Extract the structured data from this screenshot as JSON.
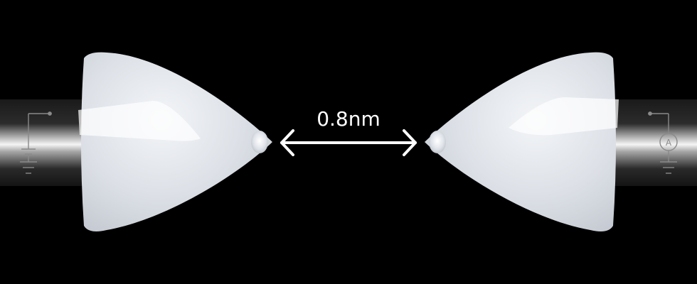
{
  "diagram": {
    "gap_label": "0.8nm",
    "colors": {
      "background": "#000000",
      "electrode": "#e8ebf0",
      "lead": "#cfcfcf",
      "circuit_line": "#8a8a8a",
      "arrow": "#ffffff",
      "label": "#ffffff"
    },
    "icons": {
      "left_lead_symbol": "battery-icon",
      "right_lead_symbol": "ammeter-icon",
      "ammeter_letter": "A"
    }
  }
}
